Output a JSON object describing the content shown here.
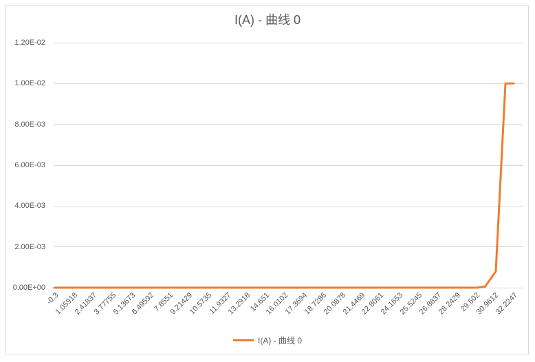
{
  "colors": {
    "series_orange": "#ED7D31",
    "gridline": "#D9D9D9",
    "frame_border": "#D9D9D9",
    "text": "#595959",
    "background": "#FFFFFF"
  },
  "chart_data": {
    "type": "line",
    "title": "I(A) - 曲线 0",
    "xlabel": "",
    "ylabel": "",
    "xlim": [
      -0.3,
      32.2247
    ],
    "ylim": [
      0,
      0.012
    ],
    "grid": "horizontal-only",
    "legend_position": "bottom-center",
    "y_axis": {
      "tick_labels": [
        "0.00E+00",
        "2.00E-03",
        "4.00E-03",
        "6.00E-03",
        "8.00E-03",
        "1.00E-02",
        "1.20E-02"
      ],
      "tick_values": [
        0,
        0.002,
        0.004,
        0.006,
        0.008,
        0.01,
        0.012
      ]
    },
    "x_axis": {
      "tick_labels": [
        "-0.3",
        "1.05918",
        "2.41837",
        "3.77755",
        "5.13673",
        "6.49592",
        "7.8551",
        "9.21429",
        "10.5735",
        "11.9327",
        "13.2918",
        "14.651",
        "16.0102",
        "17.3694",
        "18.7286",
        "20.0878",
        "21.4469",
        "22.8061",
        "24.1653",
        "25.5245",
        "26.8837",
        "28.2429",
        "29.602",
        "30.9612",
        "32.2247"
      ],
      "label_rotation_deg": 45
    },
    "legend": {
      "entries": [
        {
          "label": "I(A) - 曲线 0",
          "color": "#ED7D31"
        }
      ]
    },
    "series": [
      {
        "name": "I(A) - 曲线 0",
        "color": "#ED7D31",
        "stroke_width": 3,
        "points": [
          [
            -0.3,
            0
          ],
          [
            1.05918,
            0
          ],
          [
            2.41837,
            0
          ],
          [
            3.77755,
            0
          ],
          [
            5.13673,
            0
          ],
          [
            6.49592,
            0
          ],
          [
            7.8551,
            0
          ],
          [
            9.21429,
            0
          ],
          [
            10.5735,
            0
          ],
          [
            11.9327,
            0
          ],
          [
            13.2918,
            0
          ],
          [
            14.651,
            0
          ],
          [
            16.0102,
            0
          ],
          [
            17.3694,
            0
          ],
          [
            18.7286,
            0
          ],
          [
            20.0878,
            0
          ],
          [
            21.4469,
            0
          ],
          [
            22.8061,
            0
          ],
          [
            24.1653,
            0
          ],
          [
            25.5245,
            0
          ],
          [
            26.8837,
            0
          ],
          [
            28.2429,
            0
          ],
          [
            29.602,
            0
          ],
          [
            30.2,
            5e-05
          ],
          [
            30.9612,
            0.0008
          ],
          [
            31.64,
            0.01
          ],
          [
            32.2247,
            0.01
          ]
        ]
      }
    ]
  }
}
